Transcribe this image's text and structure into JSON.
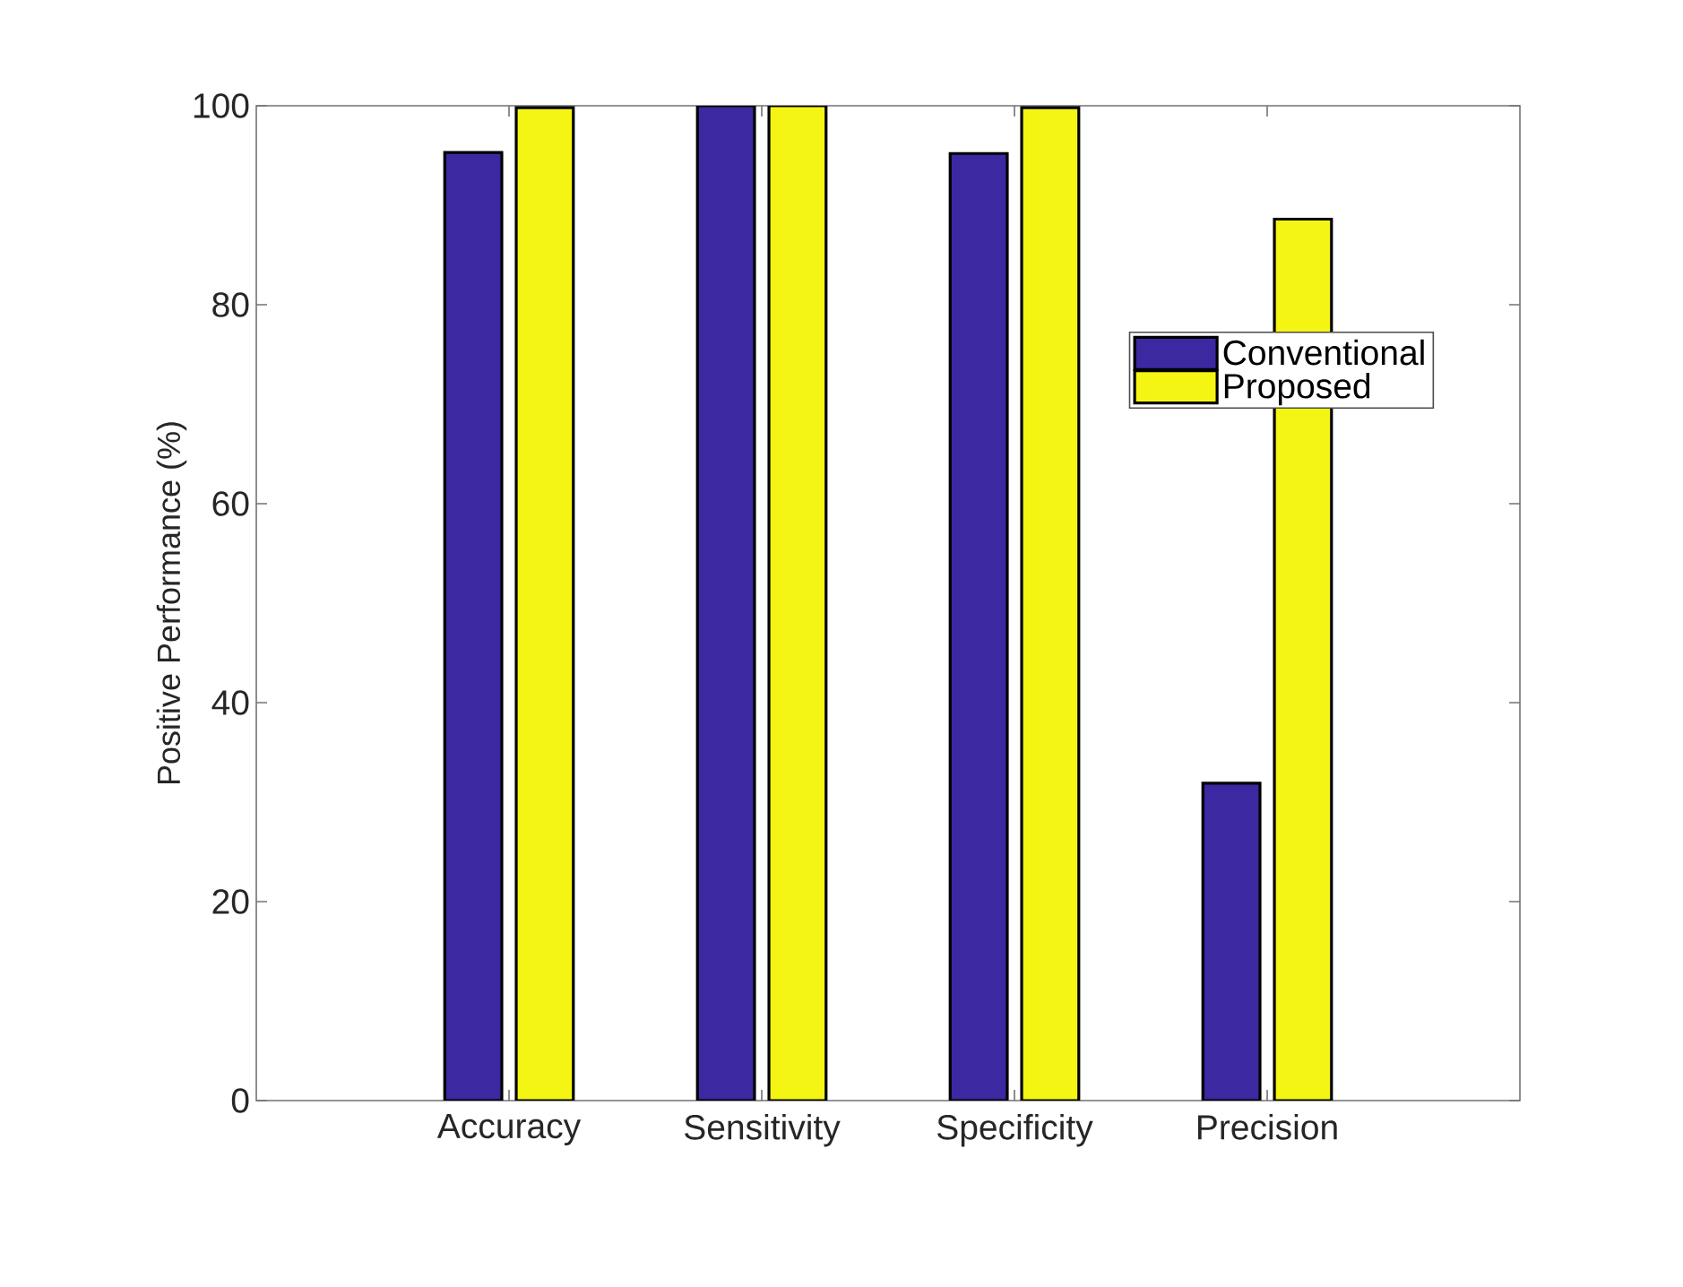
{
  "chart_data": {
    "type": "bar",
    "ylabel": "Positive Performance (%)",
    "categories": [
      "Accuracy",
      "Sensitivity",
      "Specificity",
      "Precision"
    ],
    "series": [
      {
        "name": "Conventional",
        "color": "#3c28a0",
        "values": [
          95.3,
          100,
          95.2,
          31.9
        ]
      },
      {
        "name": "Proposed",
        "color": "#f5f514",
        "values": [
          99.8,
          100,
          99.8,
          88.6
        ]
      }
    ],
    "ylim": [
      0,
      100
    ],
    "yticks": [
      0,
      20,
      40,
      60,
      80,
      100
    ],
    "grid": false,
    "legend": "right"
  }
}
